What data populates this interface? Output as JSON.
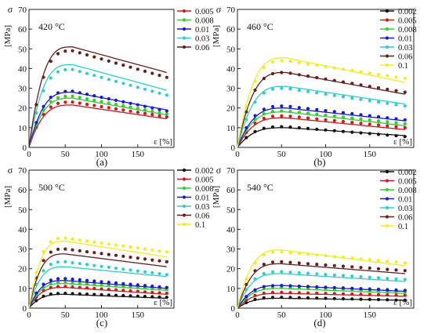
{
  "figure": {
    "panels": [
      "(a)",
      "(b)",
      "(c)",
      "(d)"
    ],
    "ylabel_symbol": "σ",
    "ylabel_unit": "[MPa]",
    "xlabel": "ε [%]"
  },
  "chart_data": [
    {
      "panel": "(a)",
      "type": "line",
      "temperature": "420 °C",
      "xlim": [
        0,
        200
      ],
      "ylim": [
        0,
        70
      ],
      "xticks": [
        "0",
        "50",
        "100",
        "150"
      ],
      "yticks": [
        "0",
        "10",
        "20",
        "30",
        "40",
        "50",
        "60",
        "70"
      ],
      "legend": "top-right",
      "note": "lines = model, dots = experiment",
      "series": [
        {
          "name": "0.005",
          "color": "#cc1a1a",
          "peak_strain": 60,
          "line_peak": 21.5,
          "line_end": 14.5,
          "dot_peak": 23,
          "dot_end": 15.5
        },
        {
          "name": "0.008",
          "color": "#33cc33",
          "peak_strain": 60,
          "line_peak": 25,
          "line_end": 16.5,
          "dot_peak": 26,
          "dot_end": 17
        },
        {
          "name": "0.01",
          "color": "#1a1acc",
          "peak_strain": 60,
          "line_peak": 28,
          "line_end": 19,
          "dot_peak": 28.5,
          "dot_end": 18.5
        },
        {
          "name": "0.03",
          "color": "#33cccc",
          "peak_strain": 60,
          "line_peak": 42,
          "line_end": 29,
          "dot_peak": 39.5,
          "dot_end": 26.5
        },
        {
          "name": "0.06",
          "color": "#661f1f",
          "peak_strain": 60,
          "line_peak": 51,
          "line_end": 38,
          "dot_peak": 49,
          "dot_end": 35.5
        }
      ]
    },
    {
      "panel": "(b)",
      "type": "line",
      "temperature": "460 °C",
      "xlim": [
        0,
        200
      ],
      "ylim": [
        0,
        70
      ],
      "xticks": [
        "0",
        "50",
        "100",
        "150"
      ],
      "yticks": [
        "0",
        "10",
        "20",
        "30",
        "40",
        "50",
        "60",
        "70"
      ],
      "legend": "top-right",
      "note": "lines = model, dots = experiment",
      "series": [
        {
          "name": "0.002",
          "color": "#111111",
          "peak_strain": 55,
          "line_peak": 10,
          "line_end": 6,
          "dot_peak": 10.5,
          "dot_end": 5.5
        },
        {
          "name": "0.005",
          "color": "#cc1a1a",
          "peak_strain": 55,
          "line_peak": 15,
          "line_end": 9,
          "dot_peak": 16,
          "dot_end": 10
        },
        {
          "name": "0.008",
          "color": "#33cc33",
          "peak_strain": 55,
          "line_peak": 18,
          "line_end": 11,
          "dot_peak": 18.5,
          "dot_end": 12
        },
        {
          "name": "0.01",
          "color": "#1a1acc",
          "peak_strain": 55,
          "line_peak": 20,
          "line_end": 13.5,
          "dot_peak": 21,
          "dot_end": 14
        },
        {
          "name": "0.03",
          "color": "#33cccc",
          "peak_strain": 55,
          "line_peak": 31,
          "line_end": 22,
          "dot_peak": 30,
          "dot_end": 21
        },
        {
          "name": "0.06",
          "color": "#661f1f",
          "peak_strain": 55,
          "line_peak": 38,
          "line_end": 27,
          "dot_peak": 38,
          "dot_end": 28
        },
        {
          "name": "0.1",
          "color": "#eeee22",
          "peak_strain": 55,
          "line_peak": 45.5,
          "line_end": 33,
          "dot_peak": 44,
          "dot_end": 35
        }
      ]
    },
    {
      "panel": "(c)",
      "type": "line",
      "temperature": "500 °C",
      "xlim": [
        0,
        200
      ],
      "ylim": [
        0,
        70
      ],
      "xticks": [
        "0",
        "50",
        "100",
        "150"
      ],
      "yticks": [
        "0",
        "10",
        "20",
        "30",
        "40",
        "50",
        "60",
        "70"
      ],
      "legend": "top-right",
      "note": "lines = model, dots = experiment",
      "series": [
        {
          "name": "0.002",
          "color": "#111111",
          "peak_strain": 50,
          "line_peak": 7,
          "line_end": 5,
          "dot_peak": 7.5,
          "dot_end": 5.5
        },
        {
          "name": "0.005",
          "color": "#cc1a1a",
          "peak_strain": 50,
          "line_peak": 10.5,
          "line_end": 7,
          "dot_peak": 11,
          "dot_end": 7.5
        },
        {
          "name": "0.008",
          "color": "#33cc33",
          "peak_strain": 50,
          "line_peak": 12.5,
          "line_end": 9,
          "dot_peak": 13,
          "dot_end": 9.5
        },
        {
          "name": "0.01",
          "color": "#1a1acc",
          "peak_strain": 50,
          "line_peak": 14,
          "line_end": 10,
          "dot_peak": 15,
          "dot_end": 10.5
        },
        {
          "name": "0.03",
          "color": "#33cccc",
          "peak_strain": 50,
          "line_peak": 21,
          "line_end": 16,
          "dot_peak": 23.5,
          "dot_end": 17
        },
        {
          "name": "0.06",
          "color": "#661f1f",
          "peak_strain": 50,
          "line_peak": 27.5,
          "line_end": 21,
          "dot_peak": 30,
          "dot_end": 23.5
        },
        {
          "name": "0.1",
          "color": "#eeee22",
          "peak_strain": 50,
          "line_peak": 34,
          "line_end": 26,
          "dot_peak": 35.5,
          "dot_end": 28.5
        }
      ]
    },
    {
      "panel": "(d)",
      "type": "line",
      "temperature": "540 °C",
      "xlim": [
        0,
        200
      ],
      "ylim": [
        0,
        70
      ],
      "xticks": [
        "0",
        "50",
        "100",
        "150"
      ],
      "yticks": [
        "0",
        "10",
        "20",
        "30",
        "40",
        "50",
        "60",
        "70"
      ],
      "legend": "top-right",
      "note": "lines = model, dots = experiment",
      "series": [
        {
          "name": "0.002",
          "color": "#111111",
          "peak_strain": 50,
          "line_peak": 5,
          "line_end": 4,
          "dot_peak": 5.5,
          "dot_end": 4
        },
        {
          "name": "0.005",
          "color": "#cc1a1a",
          "peak_strain": 50,
          "line_peak": 7.5,
          "line_end": 6,
          "dot_peak": 8,
          "dot_end": 6.5
        },
        {
          "name": "0.008",
          "color": "#33cc33",
          "peak_strain": 50,
          "line_peak": 10,
          "line_end": 7.5,
          "dot_peak": 10.5,
          "dot_end": 8
        },
        {
          "name": "0.01",
          "color": "#1a1acc",
          "peak_strain": 50,
          "line_peak": 11.5,
          "line_end": 8.5,
          "dot_peak": 11.5,
          "dot_end": 9
        },
        {
          "name": "0.03",
          "color": "#33cccc",
          "peak_strain": 50,
          "line_peak": 17.5,
          "line_end": 13.5,
          "dot_peak": 18.5,
          "dot_end": 14.5
        },
        {
          "name": "0.06",
          "color": "#661f1f",
          "peak_strain": 50,
          "line_peak": 22.5,
          "line_end": 17.5,
          "dot_peak": 23.5,
          "dot_end": 19
        },
        {
          "name": "0.1",
          "color": "#eeee22",
          "peak_strain": 50,
          "line_peak": 29.5,
          "line_end": 21.5,
          "dot_peak": 28.5,
          "dot_end": 23
        }
      ]
    }
  ]
}
